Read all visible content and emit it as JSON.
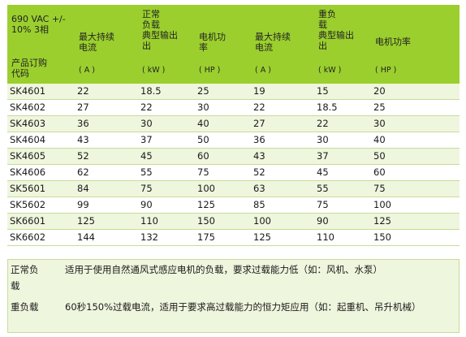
{
  "table": {
    "headers": {
      "col0_top": "690 VAC +/- 10% 3相",
      "col0_bottom": "产品订购\n代码",
      "normal_max_current": "最大持续\n电流",
      "normal_rated_output": "正常\n负载\n典型输出\n出",
      "normal_motor_power": "电机功\n率",
      "heavy_max_current": "最大持续\n电流",
      "heavy_rated_output": "重负\n载\n典型输出\n出",
      "heavy_motor_power": "电机功率"
    },
    "units": {
      "normal_current": "( A )",
      "normal_output": "( kW )",
      "normal_power": "( HP )",
      "heavy_current": "( A )",
      "heavy_output": "( kW )",
      "heavy_power": "( HP )"
    },
    "rows": [
      [
        "SK4601",
        "22",
        "18.5",
        "25",
        "19",
        "15",
        "20"
      ],
      [
        "SK4602",
        "27",
        "22",
        "30",
        "22",
        "18.5",
        "25"
      ],
      [
        "SK4603",
        "36",
        "30",
        "40",
        "27",
        "22",
        "30"
      ],
      [
        "SK4604",
        "43",
        "37",
        "50",
        "36",
        "30",
        "40"
      ],
      [
        "SK4605",
        "52",
        "45",
        "60",
        "43",
        "37",
        "50"
      ],
      [
        "SK4606",
        "62",
        "55",
        "75",
        "52",
        "45",
        "60"
      ],
      [
        "SK5601",
        "84",
        "75",
        "100",
        "63",
        "55",
        "75"
      ],
      [
        "SK5602",
        "99",
        "90",
        "125",
        "85",
        "75",
        "100"
      ],
      [
        "SK6601",
        "125",
        "110",
        "150",
        "100",
        "90",
        "125"
      ],
      [
        "SK6602",
        "144",
        "132",
        "175",
        "125",
        "110",
        "150"
      ]
    ]
  },
  "notes": [
    {
      "label": "正常负\n载",
      "text": "适用于使用自然通风式感应电机的负载，要求过载能力低（如：风机、水泵）"
    },
    {
      "label": "重负载",
      "text": "60秒150%过载电流，适用于要求高过载能力的恒力矩应用（如：起重机、吊升机械）"
    }
  ],
  "colors": {
    "header_green": "#9bcf2e",
    "row_tint": "#eff6de",
    "border": "#c6dc97"
  }
}
